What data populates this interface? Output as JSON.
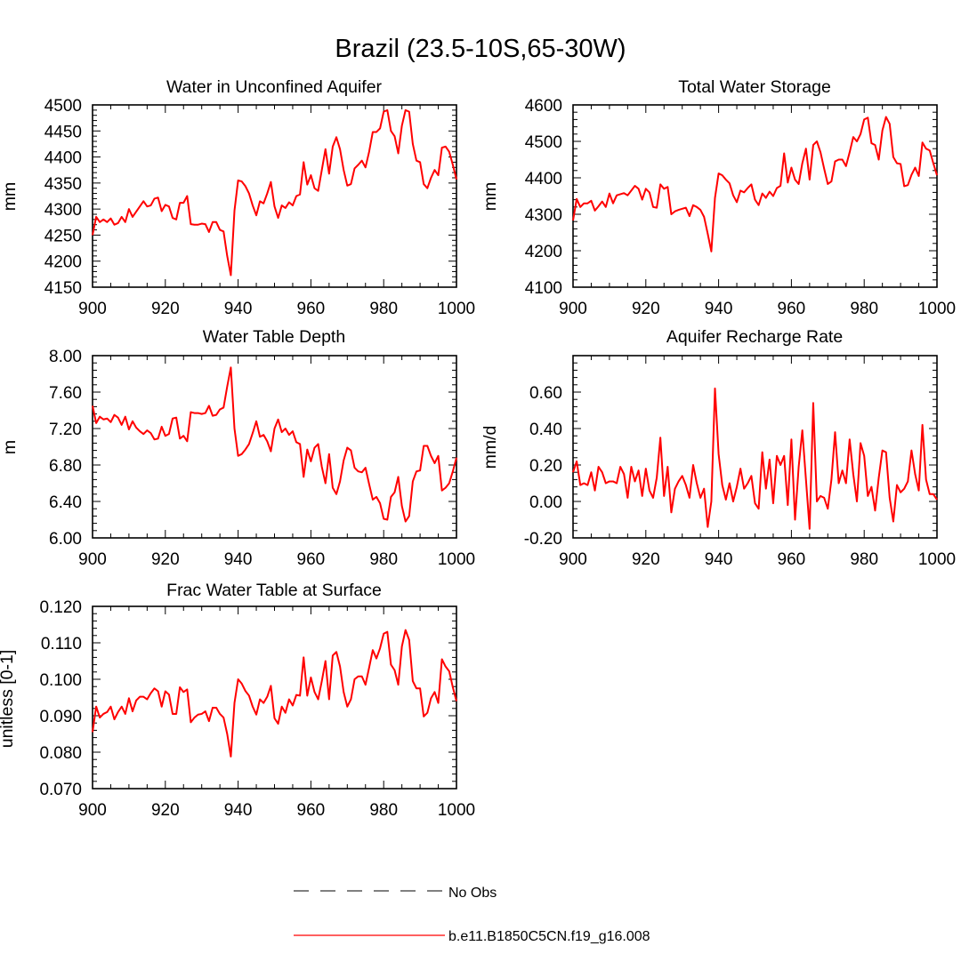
{
  "figure_title": "Brazil (23.5-10S,65-30W)",
  "colors": {
    "model_line": "#ff0000",
    "obs_line": "#000000",
    "axis": "#000000",
    "background": "#ffffff"
  },
  "legend": {
    "obs_label": "No Obs",
    "model_label": "b.e11.B1850C5CN.f19_g16.008"
  },
  "chart_data": [
    {
      "type": "line",
      "title": "Water in Unconfined Aquifer",
      "xlabel": "",
      "ylabel": "mm",
      "xlim": [
        900,
        1000
      ],
      "ylim": [
        4150,
        4500
      ],
      "xticks": [
        900,
        920,
        940,
        960,
        980,
        1000
      ],
      "xtick_labels": [
        "900",
        "920",
        "940",
        "960",
        "980",
        "1000"
      ],
      "yticks": [
        4150,
        4200,
        4250,
        4300,
        4350,
        4400,
        4450,
        4500
      ],
      "ytick_labels": [
        "4150",
        "4200",
        "4250",
        "4300",
        "4350",
        "4400",
        "4450",
        "4500"
      ],
      "series": [
        {
          "name": "b.e11.B1850C5CN.f19_g16.008",
          "x_start": 900,
          "x_step": 1,
          "values": [
            4250,
            4285,
            4275,
            4280,
            4275,
            4282,
            4270,
            4273,
            4285,
            4275,
            4300,
            4285,
            4295,
            4305,
            4315,
            4305,
            4307,
            4320,
            4322,
            4296,
            4308,
            4305,
            4283,
            4280,
            4312,
            4312,
            4325,
            4271,
            4270,
            4270,
            4272,
            4271,
            4256,
            4275,
            4275,
            4260,
            4257,
            4210,
            4173,
            4297,
            4355,
            4353,
            4344,
            4330,
            4307,
            4288,
            4315,
            4311,
            4330,
            4352,
            4305,
            4283,
            4307,
            4302,
            4313,
            4307,
            4325,
            4328,
            4390,
            4347,
            4365,
            4340,
            4335,
            4375,
            4415,
            4368,
            4420,
            4438,
            4415,
            4375,
            4345,
            4348,
            4378,
            4385,
            4393,
            4380,
            4410,
            4448,
            4448,
            4455,
            4487,
            4490,
            4450,
            4440,
            4407,
            4460,
            4490,
            4487,
            4425,
            4393,
            4390,
            4348,
            4340,
            4360,
            4375,
            4365,
            4418,
            4420,
            4410,
            4385,
            4357
          ]
        }
      ]
    },
    {
      "type": "line",
      "title": "Total Water Storage",
      "xlabel": "",
      "ylabel": "mm",
      "xlim": [
        900,
        1000
      ],
      "ylim": [
        4100,
        4600
      ],
      "xticks": [
        900,
        920,
        940,
        960,
        980,
        1000
      ],
      "xtick_labels": [
        "900",
        "920",
        "940",
        "960",
        "980",
        "1000"
      ],
      "yticks": [
        4100,
        4200,
        4300,
        4400,
        4500,
        4600
      ],
      "ytick_labels": [
        "4100",
        "4200",
        "4300",
        "4400",
        "4500",
        "4600"
      ],
      "series": [
        {
          "name": "b.e11.B1850C5CN.f19_g16.008",
          "x_start": 900,
          "x_step": 1,
          "values": [
            4283,
            4342,
            4320,
            4330,
            4330,
            4337,
            4310,
            4322,
            4335,
            4320,
            4357,
            4330,
            4352,
            4355,
            4358,
            4352,
            4365,
            4378,
            4370,
            4340,
            4370,
            4360,
            4320,
            4318,
            4382,
            4370,
            4375,
            4300,
            4308,
            4312,
            4315,
            4318,
            4295,
            4325,
            4320,
            4312,
            4293,
            4247,
            4198,
            4345,
            4412,
            4407,
            4395,
            4385,
            4352,
            4333,
            4365,
            4360,
            4372,
            4382,
            4340,
            4325,
            4357,
            4345,
            4362,
            4350,
            4372,
            4378,
            4467,
            4387,
            4428,
            4395,
            4383,
            4440,
            4480,
            4395,
            4490,
            4500,
            4470,
            4425,
            4383,
            4390,
            4445,
            4450,
            4450,
            4432,
            4470,
            4512,
            4500,
            4520,
            4560,
            4565,
            4495,
            4490,
            4450,
            4530,
            4567,
            4548,
            4457,
            4440,
            4438,
            4377,
            4380,
            4408,
            4428,
            4405,
            4497,
            4480,
            4475,
            4440,
            4407
          ]
        }
      ]
    },
    {
      "type": "line",
      "title": "Water Table Depth",
      "xlabel": "",
      "ylabel": "m",
      "xlim": [
        900,
        1000
      ],
      "ylim": [
        6.0,
        8.0
      ],
      "xticks": [
        900,
        920,
        940,
        960,
        980,
        1000
      ],
      "xtick_labels": [
        "900",
        "920",
        "940",
        "960",
        "980",
        "1000"
      ],
      "yticks": [
        6.0,
        6.4,
        6.8,
        7.2,
        7.6,
        8.0
      ],
      "ytick_labels": [
        "6.00",
        "6.40",
        "6.80",
        "7.20",
        "7.60",
        "8.00"
      ],
      "series": [
        {
          "name": "b.e11.B1850C5CN.f19_g16.008",
          "x_start": 900,
          "x_step": 1,
          "values": [
            7.45,
            7.26,
            7.33,
            7.3,
            7.31,
            7.27,
            7.35,
            7.32,
            7.24,
            7.33,
            7.19,
            7.28,
            7.21,
            7.17,
            7.14,
            7.18,
            7.15,
            7.08,
            7.09,
            7.22,
            7.12,
            7.14,
            7.31,
            7.32,
            7.09,
            7.12,
            7.06,
            7.38,
            7.37,
            7.37,
            7.36,
            7.37,
            7.45,
            7.34,
            7.35,
            7.41,
            7.43,
            7.66,
            7.87,
            7.2,
            6.9,
            6.92,
            6.97,
            7.03,
            7.15,
            7.28,
            7.11,
            7.13,
            7.06,
            6.95,
            7.2,
            7.3,
            7.16,
            7.2,
            7.13,
            7.17,
            7.05,
            7.03,
            6.67,
            6.97,
            6.84,
            6.99,
            7.03,
            6.78,
            6.6,
            6.92,
            6.55,
            6.48,
            6.62,
            6.85,
            6.99,
            6.96,
            6.77,
            6.73,
            6.72,
            6.77,
            6.59,
            6.42,
            6.45,
            6.38,
            6.21,
            6.2,
            6.45,
            6.5,
            6.67,
            6.35,
            6.18,
            6.24,
            6.62,
            6.73,
            6.74,
            7.01,
            7.01,
            6.9,
            6.82,
            6.9,
            6.52,
            6.55,
            6.6,
            6.73,
            6.88
          ]
        }
      ]
    },
    {
      "type": "line",
      "title": "Aquifer Recharge Rate",
      "xlabel": "",
      "ylabel": "mm/d",
      "xlim": [
        900,
        1000
      ],
      "ylim": [
        -0.2,
        0.8
      ],
      "xticks": [
        900,
        920,
        940,
        960,
        980,
        1000
      ],
      "xtick_labels": [
        "900",
        "920",
        "940",
        "960",
        "980",
        "1000"
      ],
      "yticks": [
        -0.2,
        0.0,
        0.2,
        0.4,
        0.6
      ],
      "ytick_labels": [
        "-0.20",
        "0.00",
        "0.20",
        "0.40",
        "0.60"
      ],
      "series": [
        {
          "name": "b.e11.B1850C5CN.f19_g16.008",
          "x_start": 900,
          "x_step": 1,
          "values": [
            0.16,
            0.22,
            0.09,
            0.1,
            0.09,
            0.16,
            0.06,
            0.19,
            0.16,
            0.1,
            0.11,
            0.11,
            0.1,
            0.19,
            0.15,
            0.02,
            0.19,
            0.11,
            0.17,
            0.03,
            0.18,
            0.06,
            0.02,
            0.13,
            0.35,
            0.03,
            0.19,
            -0.06,
            0.07,
            0.11,
            0.14,
            0.09,
            0.02,
            0.2,
            0.1,
            0.02,
            0.07,
            -0.14,
            0.0,
            0.62,
            0.26,
            0.09,
            0.01,
            0.1,
            0.0,
            0.08,
            0.18,
            0.07,
            0.1,
            0.14,
            -0.01,
            -0.04,
            0.27,
            0.07,
            0.23,
            -0.01,
            0.25,
            0.2,
            0.25,
            -0.02,
            0.34,
            -0.1,
            0.19,
            0.39,
            0.12,
            -0.15,
            0.54,
            0.0,
            0.03,
            0.02,
            -0.04,
            0.12,
            0.38,
            0.1,
            0.17,
            0.1,
            0.34,
            0.15,
            0.0,
            0.32,
            0.25,
            0.03,
            0.08,
            -0.05,
            0.13,
            0.28,
            0.27,
            0.02,
            -0.11,
            0.09,
            0.05,
            0.07,
            0.11,
            0.28,
            0.15,
            0.06,
            0.42,
            0.12,
            0.04,
            0.04,
            0.01
          ]
        }
      ]
    },
    {
      "type": "line",
      "title": "Frac Water Table at Surface",
      "xlabel": "",
      "ylabel": "unitless [0-1]",
      "xlim": [
        900,
        1000
      ],
      "ylim": [
        0.07,
        0.12
      ],
      "xticks": [
        900,
        920,
        940,
        960,
        980,
        1000
      ],
      "xtick_labels": [
        "900",
        "920",
        "940",
        "960",
        "980",
        "1000"
      ],
      "yticks": [
        0.07,
        0.08,
        0.09,
        0.1,
        0.11,
        0.12
      ],
      "ytick_labels": [
        "0.070",
        "0.080",
        "0.090",
        "0.100",
        "0.110",
        "0.120"
      ],
      "series": [
        {
          "name": "b.e11.B1850C5CN.f19_g16.008",
          "x_start": 900,
          "x_step": 1,
          "values": [
            0.0855,
            0.0925,
            0.0895,
            0.0905,
            0.091,
            0.0925,
            0.089,
            0.091,
            0.0925,
            0.0905,
            0.0948,
            0.0912,
            0.0942,
            0.0952,
            0.0952,
            0.0945,
            0.0962,
            0.0975,
            0.0967,
            0.0925,
            0.0967,
            0.0958,
            0.0905,
            0.0905,
            0.0978,
            0.0965,
            0.0972,
            0.0882,
            0.0895,
            0.0903,
            0.0905,
            0.0912,
            0.0885,
            0.0922,
            0.0922,
            0.0905,
            0.0895,
            0.085,
            0.0788,
            0.0935,
            0.1,
            0.0988,
            0.0968,
            0.0955,
            0.0925,
            0.0903,
            0.0945,
            0.0935,
            0.0952,
            0.0982,
            0.0893,
            0.0878,
            0.0925,
            0.0908,
            0.0945,
            0.0928,
            0.0957,
            0.0955,
            0.106,
            0.0955,
            0.1005,
            0.0965,
            0.0945,
            0.0995,
            0.105,
            0.0945,
            0.1065,
            0.1075,
            0.1035,
            0.0965,
            0.0925,
            0.0945,
            0.1,
            0.1008,
            0.1008,
            0.0985,
            0.1032,
            0.108,
            0.1057,
            0.1085,
            0.1125,
            0.113,
            0.104,
            0.1025,
            0.0985,
            0.109,
            0.1135,
            0.1108,
            0.0995,
            0.0975,
            0.0975,
            0.0898,
            0.0908,
            0.0948,
            0.0965,
            0.0935,
            0.1055,
            0.1035,
            0.1022,
            0.0978,
            0.094
          ]
        }
      ]
    }
  ]
}
